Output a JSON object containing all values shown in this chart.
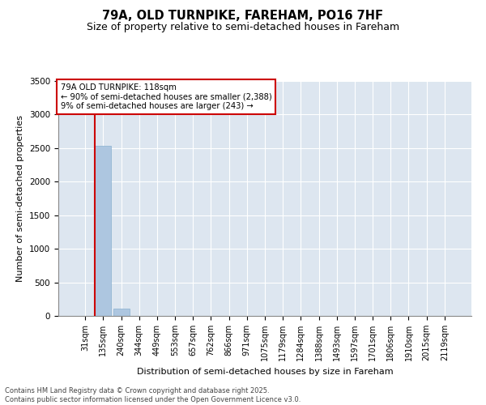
{
  "title_line1": "79A, OLD TURNPIKE, FAREHAM, PO16 7HF",
  "title_line2": "Size of property relative to semi-detached houses in Fareham",
  "xlabel": "Distribution of semi-detached houses by size in Fareham",
  "ylabel": "Number of semi-detached properties",
  "annotation_title": "79A OLD TURNPIKE: 118sqm",
  "annotation_line2": "← 90% of semi-detached houses are smaller (2,388)",
  "annotation_line3": "9% of semi-detached houses are larger (243) →",
  "footnote_line1": "Contains HM Land Registry data © Crown copyright and database right 2025.",
  "footnote_line2": "Contains public sector information licensed under the Open Government Licence v3.0.",
  "categories": [
    "31sqm",
    "135sqm",
    "240sqm",
    "344sqm",
    "449sqm",
    "553sqm",
    "657sqm",
    "762sqm",
    "866sqm",
    "971sqm",
    "1075sqm",
    "1179sqm",
    "1284sqm",
    "1388sqm",
    "1493sqm",
    "1597sqm",
    "1701sqm",
    "1806sqm",
    "1910sqm",
    "2015sqm",
    "2119sqm"
  ],
  "values": [
    0,
    2540,
    110,
    0,
    0,
    0,
    0,
    0,
    0,
    0,
    0,
    0,
    0,
    0,
    0,
    0,
    0,
    0,
    0,
    0,
    0
  ],
  "bar_color": "#adc6e0",
  "bar_edge_color": "#8ab0d0",
  "property_line_color": "#cc0000",
  "ylim": [
    0,
    3500
  ],
  "yticks": [
    0,
    500,
    1000,
    1500,
    2000,
    2500,
    3000,
    3500
  ],
  "background_color": "#dde6f0",
  "grid_color": "#ffffff",
  "annotation_box_color": "#cc0000",
  "title_fontsize": 10.5,
  "subtitle_fontsize": 9,
  "axis_label_fontsize": 8,
  "tick_fontsize": 7
}
